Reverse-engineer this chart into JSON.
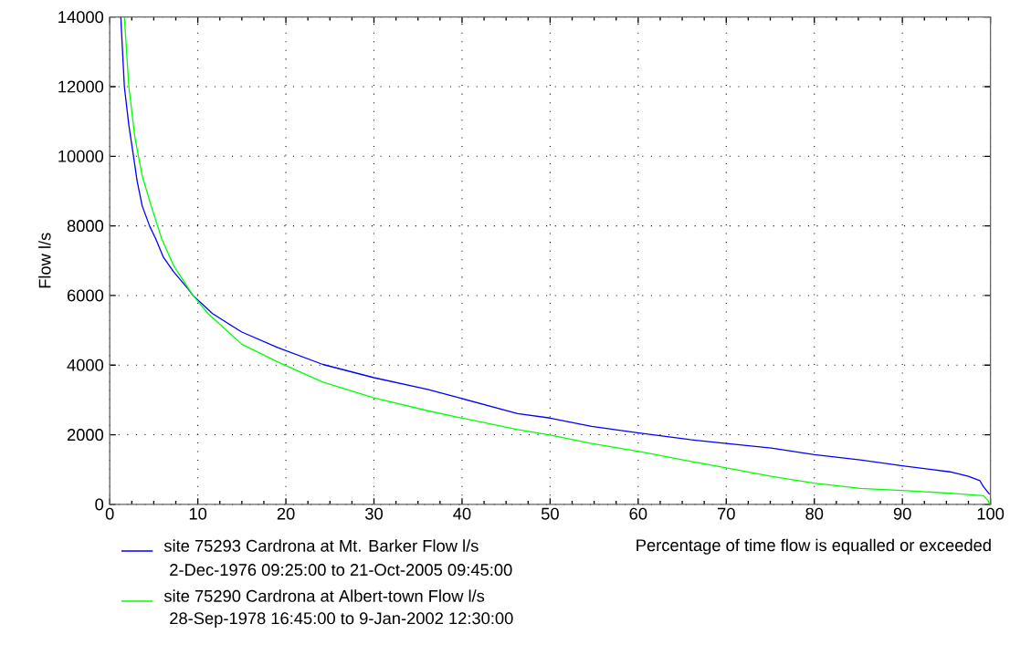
{
  "chart_data": {
    "type": "line",
    "xlabel": "Percentage of time flow is equalled or exceeded",
    "ylabel": "Flow l/s",
    "xlim": [
      0,
      100
    ],
    "ylim": [
      0,
      14000
    ],
    "xticks": [
      0,
      10,
      20,
      30,
      40,
      50,
      60,
      70,
      80,
      90,
      100
    ],
    "yticks": [
      0,
      2000,
      4000,
      6000,
      8000,
      10000,
      12000,
      14000
    ],
    "grid": true,
    "legend": "bottom",
    "marker": "none",
    "line_style": "solid",
    "annotations": [
      "2-Dec-1976 09:25:00 to 21-Oct-2005 09:45:00",
      "28-Sep-1978 16:45:00 to 9-Jan-2002 12:30:00"
    ],
    "series": [
      {
        "name": "site 75293 Cardrona at Mt. Barker  Flow l/s",
        "color": "#0000ff",
        "x": [
          1.25,
          1.66,
          2.17,
          2.68,
          3.12,
          3.69,
          4.55,
          5.22,
          6.07,
          7.25,
          8.95,
          9.46,
          11.67,
          15,
          19.1,
          24.2,
          30.0,
          36.1,
          40.0,
          46.3,
          50.0,
          54.7,
          60.1,
          65.9,
          70.0,
          75.1,
          80.0,
          85.2,
          90.0,
          95.4,
          97.5,
          98.8,
          99.2,
          99.9
        ],
        "values": [
          14000,
          12000,
          10890,
          10030,
          9270,
          8570,
          7980,
          7630,
          7110,
          6685,
          6170,
          6000,
          5480,
          4950,
          4500,
          4020,
          3640,
          3300,
          3040,
          2610,
          2480,
          2240,
          2050,
          1860,
          1750,
          1620,
          1430,
          1280,
          1110,
          935,
          805,
          680,
          510,
          290
        ]
      },
      {
        "name": "site 75290 Cardrona at Albert-town  Flow l/s",
        "color": "#00ff00",
        "x": [
          1.66,
          2.17,
          2.85,
          3.69,
          4.71,
          5.9,
          7.25,
          9.46,
          11.16,
          15,
          19.1,
          24.2,
          30.0,
          36.1,
          40.0,
          46.3,
          50.0,
          54.7,
          60.1,
          65.9,
          70.0,
          75.1,
          80.0,
          85.2,
          90.0,
          95.4,
          99.2,
          99.7,
          99.9
        ],
        "values": [
          14000,
          12000,
          10550,
          9430,
          8570,
          7630,
          6860,
          6000,
          5480,
          4600,
          4090,
          3510,
          3060,
          2690,
          2480,
          2150,
          1990,
          1750,
          1520,
          1240,
          1050,
          805,
          610,
          460,
          400,
          320,
          250,
          120,
          10
        ]
      }
    ]
  }
}
